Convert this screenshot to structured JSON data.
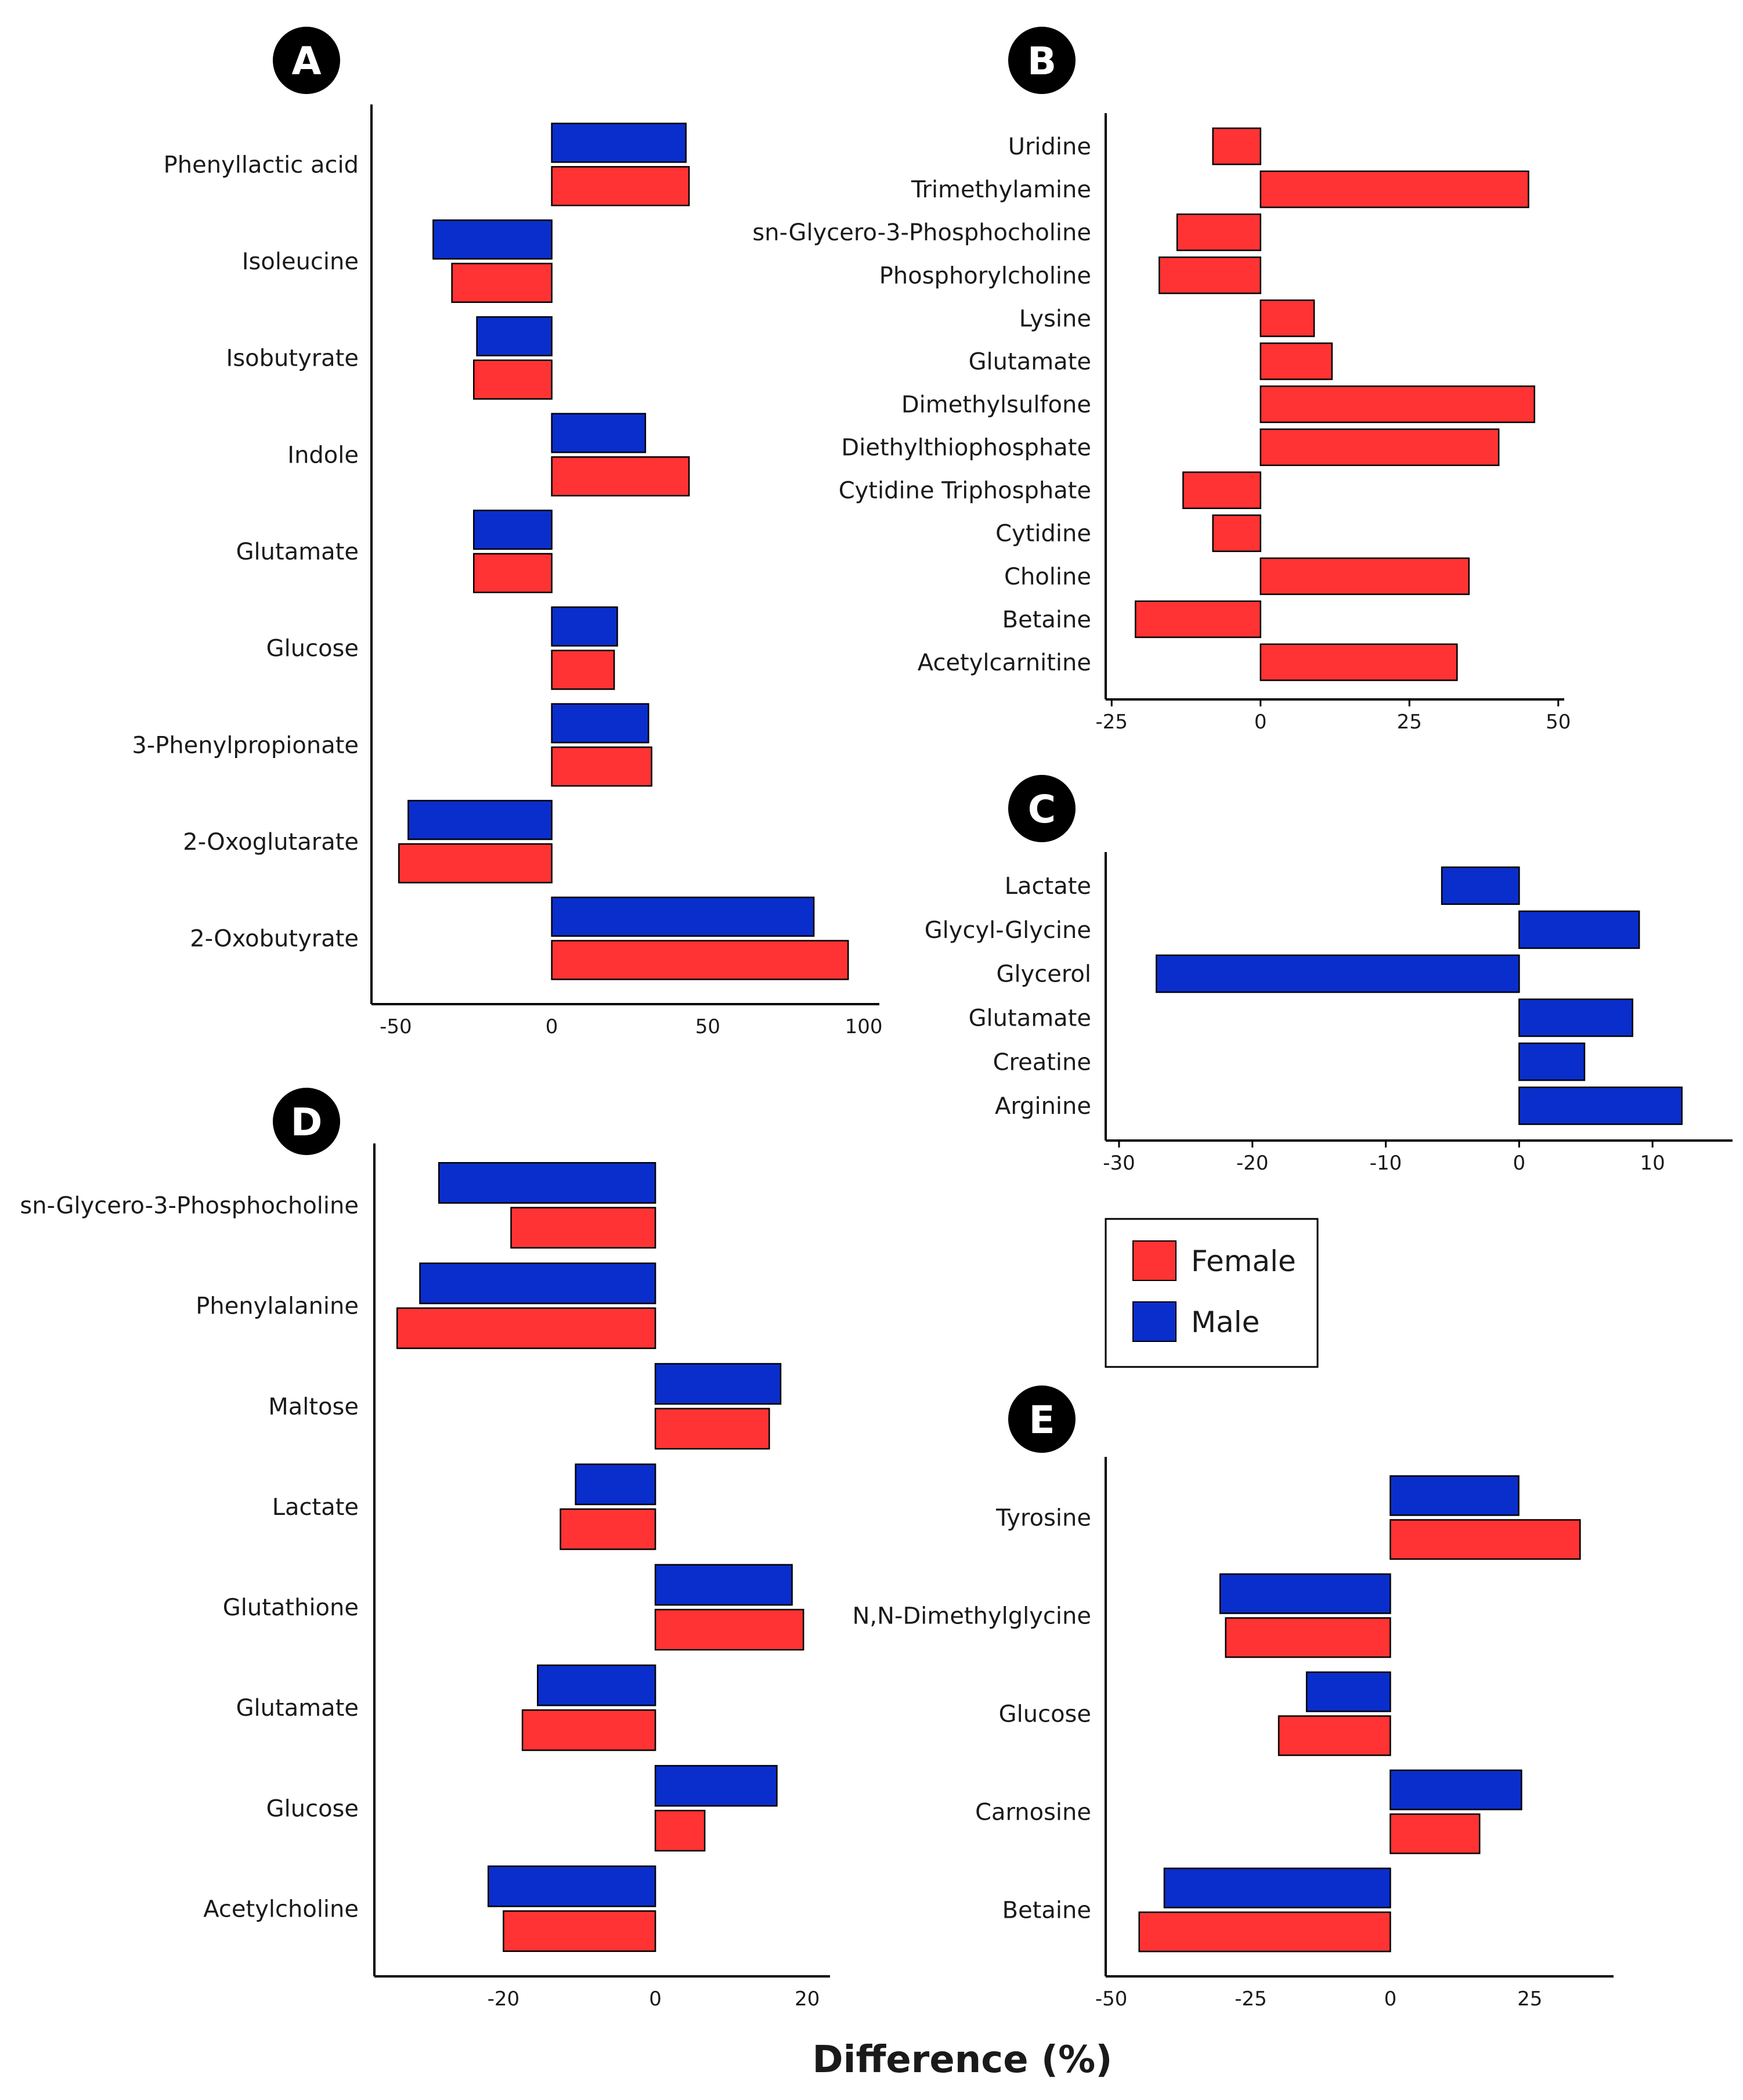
{
  "xlabel": "Difference (%)",
  "colors": {
    "female": "#ff3333",
    "male": "#0a2ecc"
  },
  "legend": [
    {
      "name": "Female",
      "color": "#ff3333"
    },
    {
      "name": "Male",
      "color": "#0a2ecc"
    }
  ],
  "chart_data": [
    {
      "panel": "A",
      "type": "bar",
      "orientation": "horizontal",
      "categories": [
        "Phenyllactic acid",
        "Isoleucine",
        "Isobutyrate",
        "Indole",
        "Glutamate",
        "Glucose",
        "3-Phenylpropionate",
        "2-Oxoglutarate",
        "2-Oxobutyrate"
      ],
      "series": [
        {
          "name": "Male",
          "values": [
            43,
            -38,
            -24,
            30,
            -25,
            21,
            31,
            -46,
            84
          ]
        },
        {
          "name": "Female",
          "values": [
            44,
            -32,
            -25,
            44,
            -25,
            20,
            32,
            -49,
            95
          ]
        }
      ],
      "xlim": [
        -55,
        105
      ],
      "xticks": [
        -50,
        0,
        50,
        100
      ]
    },
    {
      "panel": "B",
      "type": "bar",
      "orientation": "horizontal",
      "categories": [
        "Uridine",
        "Trimethylamine",
        "sn-Glycero-3-Phosphocholine",
        "Phosphorylcholine",
        "Lysine",
        "Glutamate",
        "Dimethylsulfone",
        "Diethylthiophosphate",
        "Cytidine Triphosphate",
        "Cytidine",
        "Choline",
        "Betaine",
        "Acetylcarnitine"
      ],
      "series": [
        {
          "name": "Female",
          "values": [
            -8,
            45,
            -14,
            -17,
            9,
            12,
            46,
            40,
            -13,
            -8,
            35,
            -21,
            33
          ]
        }
      ],
      "xlim": [
        -26,
        51
      ],
      "xticks": [
        -25,
        0,
        25,
        50
      ]
    },
    {
      "panel": "C",
      "type": "bar",
      "orientation": "horizontal",
      "categories": [
        "Lactate",
        "Glycyl-Glycine",
        "Glycerol",
        "Glutamate",
        "Creatine",
        "Arginine"
      ],
      "series": [
        {
          "name": "Male",
          "values": [
            -5.8,
            9,
            -27.2,
            8.5,
            4.9,
            12.2
          ]
        }
      ],
      "xlim": [
        -31,
        16
      ],
      "xticks": [
        -30,
        -20,
        -10,
        0,
        10
      ]
    },
    {
      "panel": "D",
      "type": "bar",
      "orientation": "horizontal",
      "categories": [
        "sn-Glycero-3-Phosphocholine",
        "Phenylalanine",
        "Maltose",
        "Lactate",
        "Glutathione",
        "Glutamate",
        "Glucose",
        "Acetylcholine"
      ],
      "series": [
        {
          "name": "Male",
          "values": [
            -28.5,
            -31,
            16.5,
            -10.5,
            18,
            -15.5,
            16,
            -22
          ]
        },
        {
          "name": "Female",
          "values": [
            -19,
            -34,
            15,
            -12.5,
            19.5,
            -17.5,
            6.5,
            -20
          ]
        }
      ],
      "xlim": [
        -37,
        23
      ],
      "xticks": [
        -20,
        0,
        20
      ]
    },
    {
      "panel": "E",
      "type": "bar",
      "orientation": "horizontal",
      "categories": [
        "Tyrosine",
        "N,N-Dimethylglycine",
        "Glucose",
        "Carnosine",
        "Betaine"
      ],
      "series": [
        {
          "name": "Male",
          "values": [
            23,
            -30.5,
            -15,
            23.5,
            -40.5
          ]
        },
        {
          "name": "Female",
          "values": [
            34,
            -29.5,
            -20,
            16,
            -45
          ]
        }
      ],
      "xlim": [
        -51,
        40
      ],
      "xticks": [
        -50,
        -25,
        0,
        25
      ]
    }
  ]
}
